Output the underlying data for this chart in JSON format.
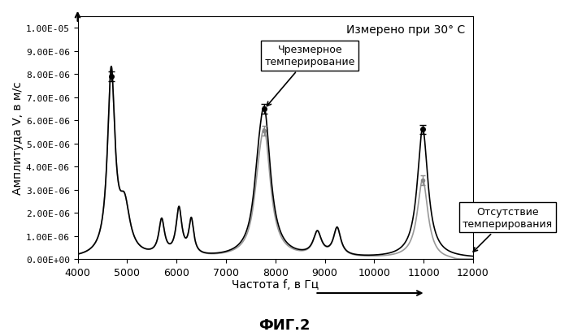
{
  "title_text": "Измерено при 30° C",
  "xlabel": "Частота f, в Гц",
  "ylabel": "Амплитуда V, в м/с",
  "fig_label": "ФИГ.2",
  "annotation1": "Чрезмерное\nтемперирование",
  "annotation2": "Отсутствие\nтемперирования",
  "xlim": [
    4000,
    12000
  ],
  "ylim": [
    0,
    1.05e-05
  ],
  "yticks": [
    0,
    1e-06,
    2e-06,
    3e-06,
    4e-06,
    5e-06,
    6e-06,
    7e-06,
    8e-06,
    9e-06,
    1e-05
  ],
  "ytick_labels": [
    "0.00E+00",
    "1.00E-06",
    "2.00E-06",
    "3.00E-06",
    "4.00E-06",
    "5.00E-06",
    "6.00E-06",
    "7.00E-06",
    "8.00E-06",
    "9.00E-06",
    "1.00E-05"
  ],
  "xticks": [
    4000,
    5000,
    6000,
    7000,
    8000,
    9000,
    10000,
    11000,
    12000
  ],
  "background_color": "#ffffff",
  "line1_color": "#000000",
  "line2_color": "#999999",
  "figsize": [
    7.0,
    4.1
  ],
  "dpi": 100
}
